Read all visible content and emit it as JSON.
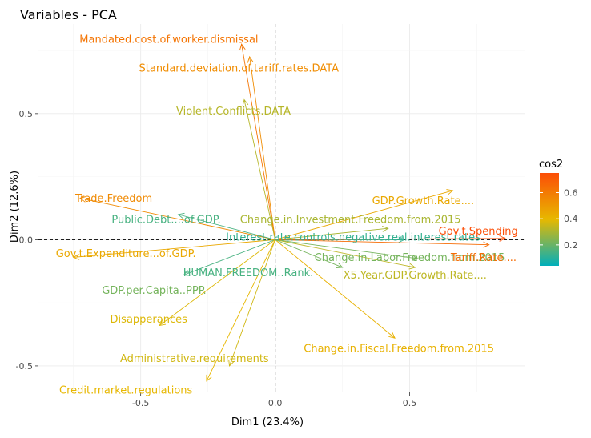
{
  "chart_data": {
    "type": "scatter",
    "title": "Variables - PCA",
    "xlabel": "Dim1 (23.4%)",
    "ylabel": "Dim2 (12.6%)",
    "xlim": [
      -0.88,
      0.93
    ],
    "ylim": [
      -0.605,
      0.855
    ],
    "xticks": [
      -0.5,
      0.0,
      0.5
    ],
    "xtick_labels": [
      "-0.5",
      "0.0",
      "0.5"
    ],
    "yticks": [
      -0.5,
      0.0,
      0.5
    ],
    "ytick_labels": [
      "-0.5",
      "0.0",
      "0.5"
    ],
    "grid": true,
    "legend": {
      "title": "cos2",
      "placement": "right",
      "range": [
        0.04,
        0.75
      ],
      "ticks": [
        0.2,
        0.4,
        0.6
      ],
      "tick_labels": [
        "0.2",
        "0.4",
        "0.6"
      ],
      "colors": [
        "#00AFBB",
        "#E7B800",
        "#FC4E07"
      ]
    },
    "variables": [
      {
        "name": "Mandated.cost.of.worker.dismissal",
        "x": -0.125,
        "y": 0.775,
        "cos2": 0.62,
        "lx": -0.395,
        "ly": 0.795
      },
      {
        "name": "Standard.deviation.of.tariff.rates.DATA",
        "x": -0.095,
        "y": 0.725,
        "cos2": 0.54,
        "lx": -0.135,
        "ly": 0.68
      },
      {
        "name": "Violent.Conflicts.DATA",
        "x": -0.115,
        "y": 0.555,
        "cos2": 0.32,
        "lx": -0.155,
        "ly": 0.51
      },
      {
        "name": "Trade.Freedom",
        "x": -0.725,
        "y": 0.165,
        "cos2": 0.55,
        "lx": -0.6,
        "ly": 0.165
      },
      {
        "name": "GDP.Growth.Rate....",
        "x": 0.66,
        "y": 0.195,
        "cos2": 0.45,
        "lx": 0.55,
        "ly": 0.155
      },
      {
        "name": "Public.Debt....of.GDP.",
        "x": -0.36,
        "y": 0.1,
        "cos2": 0.15,
        "lx": -0.405,
        "ly": 0.08
      },
      {
        "name": "Change.in.Investment.Freedom.from.2015",
        "x": 0.42,
        "y": 0.045,
        "cos2": 0.3,
        "lx": 0.28,
        "ly": 0.08
      },
      {
        "name": "Interest.rate.controls.negative.real.interest.rates",
        "x": 0.48,
        "y": 0.0,
        "cos2": 0.12,
        "lx": 0.29,
        "ly": 0.01
      },
      {
        "name": "Gov.t.Spending",
        "x": 0.855,
        "y": 0.005,
        "cos2": 0.75,
        "lx": 0.755,
        "ly": 0.035
      },
      {
        "name": "Gov.t.Expenditure...of.GDP.",
        "x": -0.75,
        "y": -0.07,
        "cos2": 0.45,
        "lx": -0.555,
        "ly": -0.055
      },
      {
        "name": "Change.in.Labor.Freedom.from.2015",
        "x": 0.53,
        "y": -0.075,
        "cos2": 0.22,
        "lx": 0.5,
        "ly": -0.07
      },
      {
        "name": "Tariff.Rate....",
        "x": 0.795,
        "y": -0.02,
        "cos2": 0.65,
        "lx": 0.775,
        "ly": -0.07
      },
      {
        "name": "HUMAN.FREEDOM..Rank.",
        "x": -0.34,
        "y": -0.14,
        "cos2": 0.15,
        "lx": -0.1,
        "ly": -0.13
      },
      {
        "name": "X5.Year.GDP.Growth.Rate....",
        "x": 0.52,
        "y": -0.11,
        "cos2": 0.33,
        "lx": 0.52,
        "ly": -0.14
      },
      {
        "name": "GDP.per.Capita..PPP.",
        "x": 0.25,
        "y": -0.11,
        "cos2": 0.22,
        "lx": -0.45,
        "ly": -0.2
      },
      {
        "name": "Disapperances",
        "x": -0.43,
        "y": -0.34,
        "cos2": 0.38,
        "lx": -0.47,
        "ly": -0.315
      },
      {
        "name": "Change.in.Fiscal.Freedom.from.2015",
        "x": 0.445,
        "y": -0.39,
        "cos2": 0.42,
        "lx": 0.46,
        "ly": -0.43
      },
      {
        "name": "Administrative.requirements",
        "x": -0.17,
        "y": -0.5,
        "cos2": 0.36,
        "lx": -0.3,
        "ly": -0.47
      },
      {
        "name": "Credit.market.regulations",
        "x": -0.255,
        "y": -0.56,
        "cos2": 0.4,
        "lx": -0.555,
        "ly": -0.595
      }
    ]
  }
}
